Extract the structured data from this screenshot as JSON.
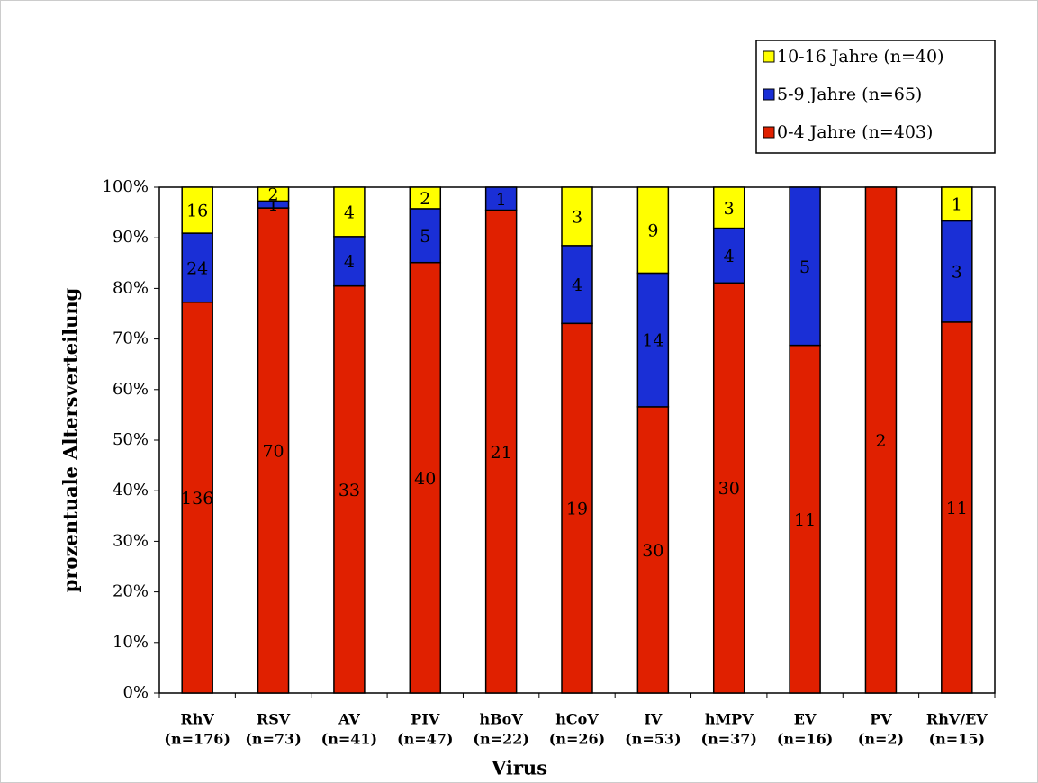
{
  "chart_data": {
    "type": "bar",
    "stacking": "percent",
    "x_label": "Virus",
    "y_label": "prozentuale Altersverteilung",
    "categories": [
      [
        "RhV",
        "(n=176)"
      ],
      [
        "RSV",
        "(n=73)"
      ],
      [
        "AV",
        "(n=41)"
      ],
      [
        "PIV",
        "(n=47)"
      ],
      [
        "hBoV",
        "(n=22)"
      ],
      [
        "hCoV",
        "(n=26)"
      ],
      [
        "IV",
        "(n=53)"
      ],
      [
        "hMPV",
        "(n=37)"
      ],
      [
        "EV",
        "(n=16)"
      ],
      [
        "PV",
        "(n=2)"
      ],
      [
        "RhV/EV",
        "(n=15)"
      ]
    ],
    "series": [
      {
        "name": "0-4 Jahre (n=403)",
        "color": "#e02000",
        "values": [
          136,
          70,
          33,
          40,
          21,
          19,
          30,
          30,
          11,
          2,
          11
        ]
      },
      {
        "name": "5-9 Jahre (n=65)",
        "color": "#1a2fd6",
        "values": [
          24,
          1,
          4,
          5,
          1,
          4,
          14,
          4,
          5,
          0,
          3
        ]
      },
      {
        "name": "10-16 Jahre (n=40)",
        "color": "#ffff00",
        "values": [
          16,
          2,
          4,
          2,
          0,
          3,
          9,
          3,
          0,
          0,
          1
        ]
      }
    ],
    "ylim": [
      0,
      100
    ],
    "yticks": [
      {
        "value": 0,
        "label": "0%"
      },
      {
        "value": 10,
        "label": "10%"
      },
      {
        "value": 20,
        "label": "20%"
      },
      {
        "value": 30,
        "label": "30%"
      },
      {
        "value": 40,
        "label": "40%"
      },
      {
        "value": 50,
        "label": "50%"
      },
      {
        "value": 60,
        "label": "60%"
      },
      {
        "value": 70,
        "label": "70%"
      },
      {
        "value": 80,
        "label": "80%"
      },
      {
        "value": 90,
        "label": "90%"
      },
      {
        "value": 100,
        "label": "100%"
      }
    ],
    "legend": "top-right"
  }
}
